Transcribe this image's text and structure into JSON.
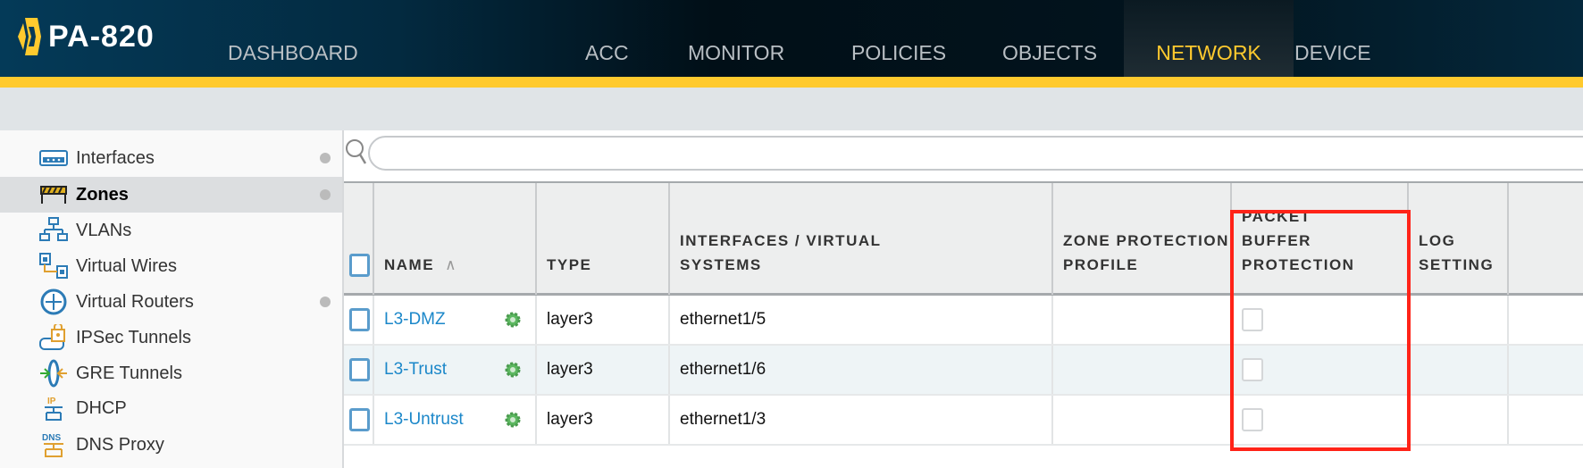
{
  "app": {
    "title": "PA-820"
  },
  "nav": [
    {
      "label": "DASHBOARD"
    },
    {
      "label": "ACC"
    },
    {
      "label": "MONITOR"
    },
    {
      "label": "POLICIES"
    },
    {
      "label": "OBJECTS"
    },
    {
      "label": "NETWORK",
      "active": true
    },
    {
      "label": "DEVICE"
    }
  ],
  "sidebar": {
    "items": [
      {
        "label": "Interfaces",
        "icon": "interfaces-icon",
        "dot": true
      },
      {
        "label": "Zones",
        "icon": "zones-icon",
        "dot": true,
        "selected": true
      },
      {
        "label": "VLANs",
        "icon": "vlans-icon"
      },
      {
        "label": "Virtual Wires",
        "icon": "virtual-wires-icon"
      },
      {
        "label": "Virtual Routers",
        "icon": "virtual-routers-icon",
        "dot": true
      },
      {
        "label": "IPSec Tunnels",
        "icon": "ipsec-tunnels-icon"
      },
      {
        "label": "GRE Tunnels",
        "icon": "gre-tunnels-icon"
      },
      {
        "label": "DHCP",
        "icon": "dhcp-icon"
      },
      {
        "label": "DNS Proxy",
        "icon": "dns-proxy-icon"
      }
    ]
  },
  "search": {
    "value": "",
    "placeholder": ""
  },
  "table": {
    "columns": [
      "NAME",
      "TYPE",
      "INTERFACES / VIRTUAL SYSTEMS",
      "ZONE PROTECTION PROFILE",
      "PACKET BUFFER PROTECTION",
      "LOG SETTING"
    ],
    "rows": [
      {
        "name": "L3-DMZ",
        "type": "layer3",
        "interfaces": "ethernet1/5",
        "zone_protection": "",
        "packet_buffer": false,
        "log_setting": ""
      },
      {
        "name": "L3-Trust",
        "type": "layer3",
        "interfaces": "ethernet1/6",
        "zone_protection": "",
        "packet_buffer": false,
        "log_setting": ""
      },
      {
        "name": "L3-Untrust",
        "type": "layer3",
        "interfaces": "ethernet1/3",
        "zone_protection": "",
        "packet_buffer": false,
        "log_setting": ""
      }
    ]
  },
  "colors": {
    "accent": "#ffca2e",
    "link": "#1b87c9",
    "highlight_box": "#ff2318",
    "gear": "#4caf50"
  }
}
